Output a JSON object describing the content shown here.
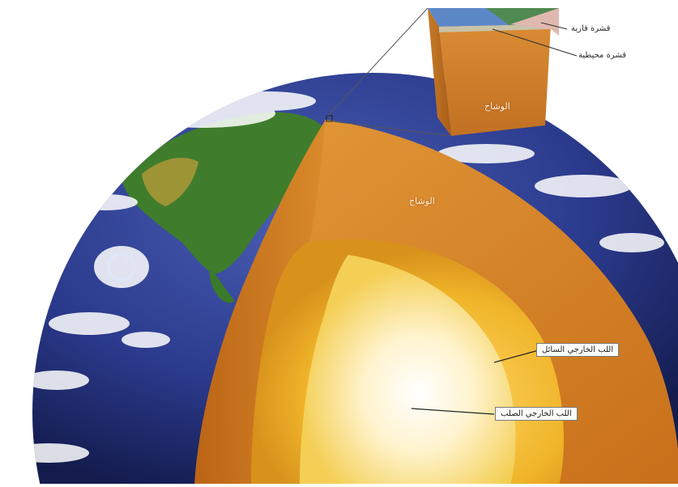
{
  "labels": {
    "continental_crust": "قشرة قارية",
    "oceanic_crust": "قشرة محيطية",
    "mantle_block": "الوشاح",
    "mantle": "الوشاح",
    "outer_core": "اللب الخارجي السائل",
    "inner_core": "اللب الخارجي الصلب"
  },
  "colors": {
    "ocean": "#2b3a8c",
    "land": "#3f7d2c",
    "mantle": "#d98a2a",
    "outer_core": "#f0b52a",
    "inner_core": "#fff4cf",
    "leader": "#222222"
  }
}
